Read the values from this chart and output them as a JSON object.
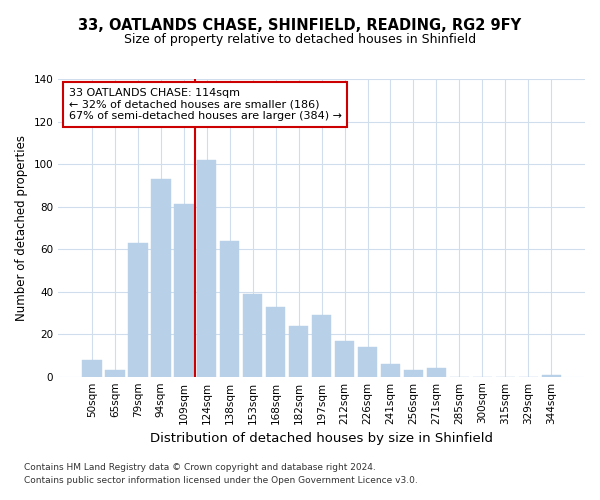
{
  "title1": "33, OATLANDS CHASE, SHINFIELD, READING, RG2 9FY",
  "title2": "Size of property relative to detached houses in Shinfield",
  "xlabel": "Distribution of detached houses by size in Shinfield",
  "ylabel": "Number of detached properties",
  "categories": [
    "50sqm",
    "65sqm",
    "79sqm",
    "94sqm",
    "109sqm",
    "124sqm",
    "138sqm",
    "153sqm",
    "168sqm",
    "182sqm",
    "197sqm",
    "212sqm",
    "226sqm",
    "241sqm",
    "256sqm",
    "271sqm",
    "285sqm",
    "300sqm",
    "315sqm",
    "329sqm",
    "344sqm"
  ],
  "values": [
    8,
    3,
    63,
    93,
    81,
    102,
    64,
    39,
    33,
    24,
    29,
    17,
    14,
    6,
    3,
    4,
    0,
    0,
    0,
    0,
    1
  ],
  "bar_color": "#b8d0e8",
  "annotation_text": "33 OATLANDS CHASE: 114sqm\n← 32% of detached houses are smaller (186)\n67% of semi-detached houses are larger (384) →",
  "annotation_box_color": "#ffffff",
  "annotation_box_edge_color": "#cc0000",
  "vline_color": "#cc0000",
  "vline_pos": 4.5,
  "ylim": [
    0,
    140
  ],
  "yticks": [
    0,
    20,
    40,
    60,
    80,
    100,
    120,
    140
  ],
  "footer1": "Contains HM Land Registry data © Crown copyright and database right 2024.",
  "footer2": "Contains public sector information licensed under the Open Government Licence v3.0.",
  "background_color": "#ffffff",
  "grid_color": "#d0dded",
  "title1_fontsize": 10.5,
  "title2_fontsize": 9,
  "ylabel_fontsize": 8.5,
  "xlabel_fontsize": 9.5,
  "tick_fontsize": 7.5,
  "annotation_fontsize": 8,
  "footer_fontsize": 6.5
}
